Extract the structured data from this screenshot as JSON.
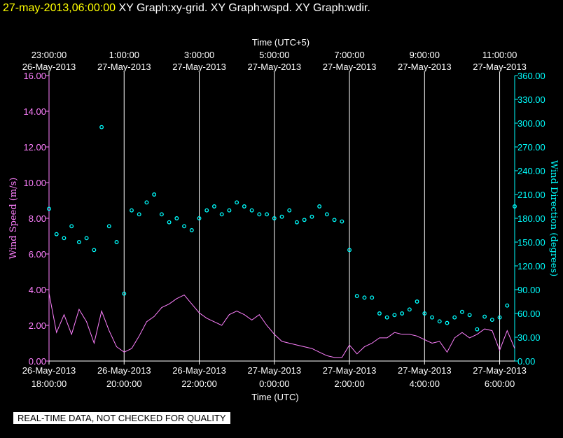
{
  "header": {
    "timestamp": "27-may-2013,06:00:00",
    "graph_1": "XY Graph:xy-grid.",
    "graph_2": "XY Graph:wspd.",
    "graph_3": "XY Graph:wdir."
  },
  "notice": "REAL-TIME DATA, NOT CHECKED FOR QUALITY",
  "colors": {
    "background": "#000000",
    "grid": "#ffffff",
    "wind_speed": "#ff80ff",
    "wind_direction": "#00ffff",
    "header_stamp": "#ffff00"
  },
  "chart_data": {
    "type": "line",
    "xlabel_bottom": "Time (UTC)",
    "xlabel_top": "Time (UTC+5)",
    "x_range_hours_utc": [
      18,
      30.4
    ],
    "bottom_ticks": [
      {
        "hour": 18,
        "date": "26-May-2013",
        "time": "18:00:00"
      },
      {
        "hour": 20,
        "date": "26-May-2013",
        "time": "20:00:00"
      },
      {
        "hour": 22,
        "date": "26-May-2013",
        "time": "22:00:00"
      },
      {
        "hour": 24,
        "date": "27-May-2013",
        "time": "0:00:00"
      },
      {
        "hour": 26,
        "date": "27-May-2013",
        "time": "2:00:00"
      },
      {
        "hour": 28,
        "date": "27-May-2013",
        "time": "4:00:00"
      },
      {
        "hour": 30,
        "date": "27-May-2013",
        "time": "6:00:00"
      }
    ],
    "top_ticks": [
      {
        "hour": 18,
        "time": "23:00:00",
        "date": "26-May-2013"
      },
      {
        "hour": 20,
        "time": "1:00:00",
        "date": "27-May-2013"
      },
      {
        "hour": 22,
        "time": "3:00:00",
        "date": "27-May-2013"
      },
      {
        "hour": 24,
        "time": "5:00:00",
        "date": "27-May-2013"
      },
      {
        "hour": 26,
        "time": "7:00:00",
        "date": "27-May-2013"
      },
      {
        "hour": 28,
        "time": "9:00:00",
        "date": "27-May-2013"
      },
      {
        "hour": 30,
        "time": "11:00:00",
        "date": "27-May-2013"
      }
    ],
    "left_axis": {
      "label": "Wind Speed (m/s)",
      "range": [
        0,
        16
      ],
      "ticks": [
        "0.00",
        "2.00",
        "4.00",
        "6.00",
        "8.00",
        "10.00",
        "12.00",
        "14.00",
        "16.00"
      ]
    },
    "right_axis": {
      "label": "Wind Direction (degrees)",
      "range": [
        0,
        360
      ],
      "ticks": [
        "0.00",
        "30.00",
        "60.00",
        "90.00",
        "120.00",
        "150.00",
        "180.00",
        "210.00",
        "240.00",
        "270.00",
        "300.00",
        "330.00",
        "360.00"
      ]
    },
    "series": [
      {
        "name": "Wind Speed",
        "axis": "left",
        "style": "line",
        "x": [
          18.0,
          18.2,
          18.4,
          18.6,
          18.8,
          19.0,
          19.2,
          19.4,
          19.6,
          19.8,
          20.0,
          20.2,
          20.4,
          20.6,
          20.8,
          21.0,
          21.2,
          21.4,
          21.6,
          21.8,
          22.0,
          22.2,
          22.4,
          22.6,
          22.8,
          23.0,
          23.2,
          23.4,
          23.6,
          23.8,
          24.0,
          24.2,
          24.4,
          24.6,
          24.8,
          25.0,
          25.2,
          25.4,
          25.6,
          25.8,
          26.0,
          26.2,
          26.4,
          26.6,
          26.8,
          27.0,
          27.2,
          27.4,
          27.6,
          27.8,
          28.0,
          28.2,
          28.4,
          28.6,
          28.8,
          29.0,
          29.2,
          29.4,
          29.6,
          29.8,
          30.0,
          30.2,
          30.4
        ],
        "y": [
          3.8,
          1.6,
          2.6,
          1.5,
          2.9,
          2.2,
          1.0,
          2.8,
          1.7,
          0.8,
          0.5,
          0.7,
          1.4,
          2.2,
          2.5,
          3.0,
          3.2,
          3.5,
          3.7,
          3.2,
          2.7,
          2.4,
          2.2,
          2.0,
          2.6,
          2.8,
          2.6,
          2.3,
          2.6,
          2.0,
          1.5,
          1.1,
          1.0,
          0.9,
          0.8,
          0.7,
          0.5,
          0.3,
          0.2,
          0.2,
          0.9,
          0.4,
          0.8,
          1.0,
          1.3,
          1.3,
          1.6,
          1.5,
          1.5,
          1.4,
          1.2,
          1.0,
          1.1,
          0.5,
          1.3,
          1.6,
          1.3,
          1.5,
          1.8,
          1.7,
          0.6,
          1.7,
          0.7
        ]
      },
      {
        "name": "Wind Direction",
        "axis": "right",
        "style": "scatter",
        "x": [
          18.0,
          18.2,
          18.4,
          18.6,
          18.8,
          19.0,
          19.2,
          19.4,
          19.6,
          19.8,
          20.0,
          20.2,
          20.4,
          20.6,
          20.8,
          21.0,
          21.2,
          21.4,
          21.6,
          21.8,
          22.0,
          22.2,
          22.4,
          22.6,
          22.8,
          23.0,
          23.2,
          23.4,
          23.6,
          23.8,
          24.0,
          24.2,
          24.4,
          24.6,
          24.8,
          25.0,
          25.2,
          25.4,
          25.6,
          25.8,
          26.0,
          26.2,
          26.4,
          26.6,
          26.8,
          27.0,
          27.2,
          27.4,
          27.6,
          27.8,
          28.0,
          28.2,
          28.4,
          28.6,
          28.8,
          29.0,
          29.2,
          29.4,
          29.6,
          29.8,
          30.0,
          30.2,
          30.4
        ],
        "y": [
          192,
          160,
          155,
          170,
          150,
          155,
          140,
          295,
          170,
          150,
          85,
          190,
          185,
          200,
          210,
          185,
          175,
          180,
          170,
          165,
          180,
          190,
          195,
          185,
          190,
          200,
          195,
          190,
          185,
          185,
          180,
          182,
          190,
          175,
          178,
          182,
          195,
          185,
          178,
          176,
          140,
          82,
          80,
          80,
          60,
          55,
          58,
          60,
          65,
          75,
          60,
          55,
          50,
          48,
          55,
          62,
          58,
          40,
          56,
          52,
          55,
          70,
          195
        ]
      }
    ]
  }
}
